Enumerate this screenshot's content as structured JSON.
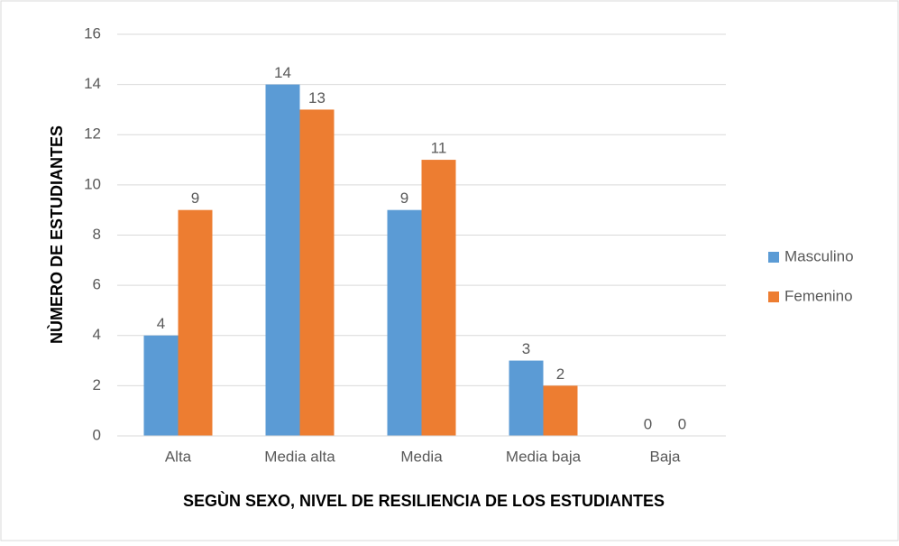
{
  "chart_data": {
    "type": "bar",
    "categories": [
      "Alta",
      "Media alta",
      "Media",
      "Media baja",
      "Baja"
    ],
    "series": [
      {
        "name": "Masculino",
        "color": "#5b9bd5",
        "values": [
          4,
          14,
          9,
          3,
          0
        ]
      },
      {
        "name": "Femenino",
        "color": "#ed7d31",
        "values": [
          9,
          13,
          11,
          2,
          0
        ]
      }
    ],
    "x_label": "SEGÙN SEXO, NIVEL DE RESILIENCIA DE LOS ESTUDIANTES",
    "y_label": "NÙMERO DE ESTUDIANTES",
    "ylim": [
      0,
      16
    ],
    "yticks": [
      0,
      2,
      4,
      6,
      8,
      10,
      12,
      14,
      16
    ],
    "grid": true,
    "legend": "right"
  }
}
